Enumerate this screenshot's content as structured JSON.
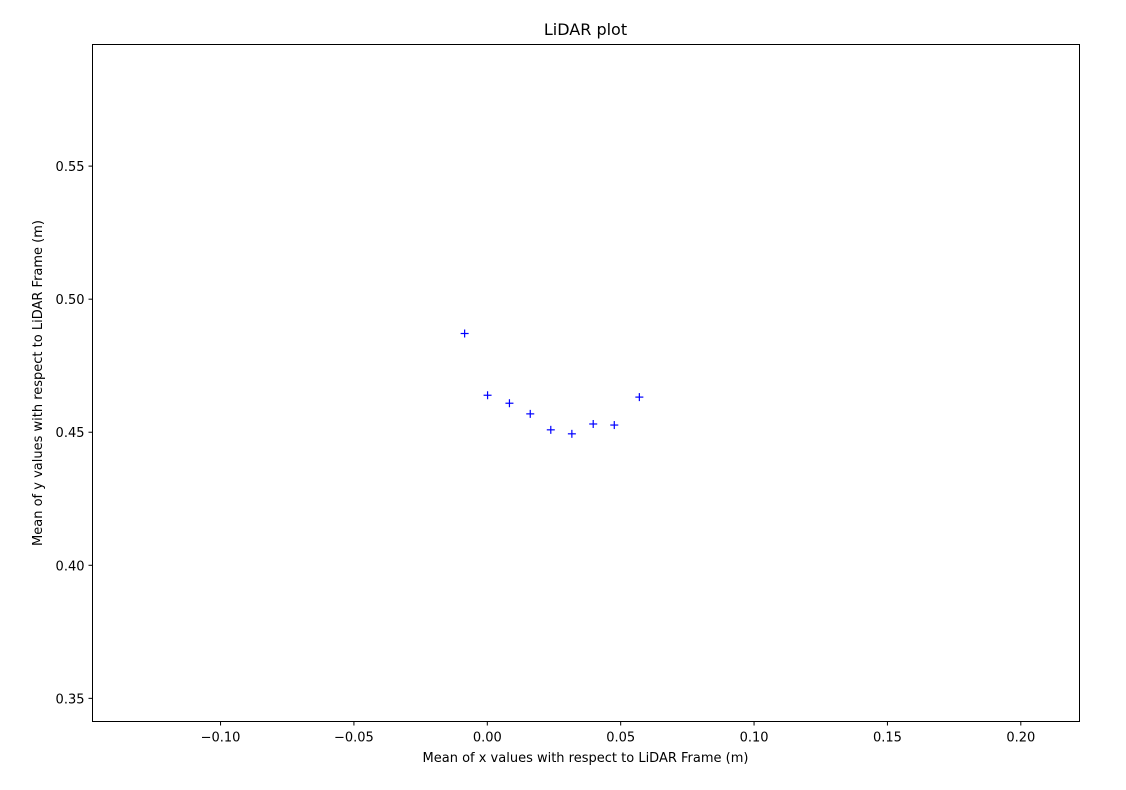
{
  "chart_data": {
    "type": "scatter",
    "title": "LiDAR plot",
    "xlabel": "Mean of x values with respect to LiDAR Frame (m)",
    "ylabel": "Mean of y values with respect to LiDAR Frame (m)",
    "xlim": [
      -0.148,
      0.222
    ],
    "ylim": [
      0.3413,
      0.5957
    ],
    "x_ticks": [
      -0.1,
      -0.05,
      0.0,
      0.05,
      0.1,
      0.15,
      0.2
    ],
    "x_tick_labels": [
      "−0.10",
      "−0.05",
      "0.00",
      "0.05",
      "0.10",
      "0.15",
      "0.20"
    ],
    "y_ticks": [
      0.35,
      0.4,
      0.45,
      0.5,
      0.55
    ],
    "y_tick_labels": [
      "0.35",
      "0.40",
      "0.45",
      "0.50",
      "0.55"
    ],
    "grid": false,
    "marker": "+",
    "marker_color": "#0000ff",
    "series": [
      {
        "x": [
          -0.0085,
          0.0001,
          0.0083,
          0.0161,
          0.0238,
          0.0317,
          0.0397,
          0.0476,
          0.057
        ],
        "y": [
          0.4871,
          0.4639,
          0.4609,
          0.4569,
          0.4509,
          0.4494,
          0.4531,
          0.4527,
          0.4632
        ]
      }
    ]
  }
}
